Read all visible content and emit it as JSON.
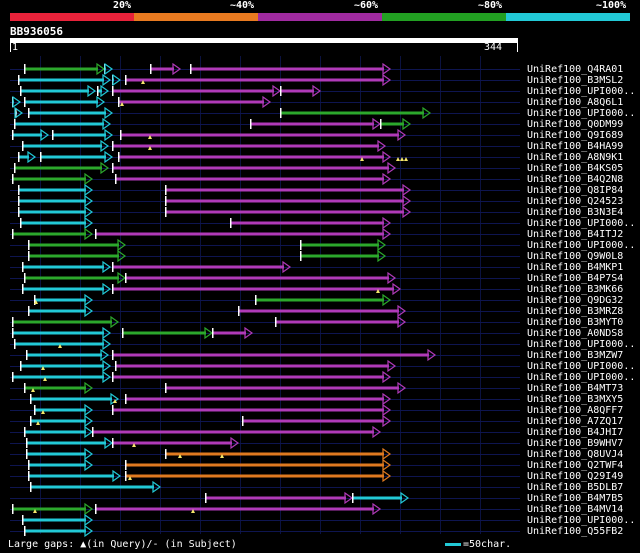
{
  "legend": {
    "labels": [
      "20%",
      "~40%",
      "~60%",
      "~80%",
      "~100%"
    ],
    "colors": [
      "#e8223a",
      "#e87a20",
      "#a02aa0",
      "#22a022",
      "#22c9d6"
    ]
  },
  "query": {
    "title": "BB936056",
    "start": "1",
    "end": "344"
  },
  "palette": {
    "cyan": "#22c9d6",
    "green": "#2ca82c",
    "purple": "#b03ab8",
    "orange": "#e07a20",
    "white": "#ffffff",
    "marker": "#f4e66a"
  },
  "hits": [
    {
      "label": "UniRef100_Q4RA01"
    },
    {
      "label": "UniRef100_B3MSL2"
    },
    {
      "label": "UniRef100_UPI000.."
    },
    {
      "label": "UniRef100_A8Q6L1"
    },
    {
      "label": "UniRef100_UPI000.."
    },
    {
      "label": "UniRef100_Q0DM99"
    },
    {
      "label": "UniRef100_Q9I689"
    },
    {
      "label": "UniRef100_B4HA99"
    },
    {
      "label": "UniRef100_A8N9K1"
    },
    {
      "label": "UniRef100_B4KS05"
    },
    {
      "label": "UniRef100_B4Q2N8"
    },
    {
      "label": "UniRef100_Q8IP84"
    },
    {
      "label": "UniRef100_Q24523"
    },
    {
      "label": "UniRef100_B3N3E4"
    },
    {
      "label": "UniRef100_UPI000.."
    },
    {
      "label": "UniRef100_B4ITJ2"
    },
    {
      "label": "UniRef100_UPI000.."
    },
    {
      "label": "UniRef100_Q9W0L8"
    },
    {
      "label": "UniRef100_B4MKP1"
    },
    {
      "label": "UniRef100_B4P7S4"
    },
    {
      "label": "UniRef100_B3MK66"
    },
    {
      "label": "UniRef100_Q9DG32"
    },
    {
      "label": "UniRef100_B3MRZ8"
    },
    {
      "label": "UniRef100_B3MYT0"
    },
    {
      "label": "UniRef100_A0NDS8"
    },
    {
      "label": "UniRef100_UPI000.."
    },
    {
      "label": "UniRef100_B3MZW7"
    },
    {
      "label": "UniRef100_UPI000.."
    },
    {
      "label": "UniRef100_UPI000.."
    },
    {
      "label": "UniRef100_B4MT73"
    },
    {
      "label": "UniRef100_B3MXY5"
    },
    {
      "label": "UniRef100_A8QFF7"
    },
    {
      "label": "UniRef100_A7ZQ17"
    },
    {
      "label": "UniRef100_B4JHI7"
    },
    {
      "label": "UniRef100_B9WHV7"
    },
    {
      "label": "UniRef100_Q8UVJ4"
    },
    {
      "label": "UniRef100_Q2TWF4"
    },
    {
      "label": "UniRef100_Q29I49"
    },
    {
      "label": "UniRef100_B5DLB7"
    },
    {
      "label": "UniRef100_B4M7B5"
    },
    {
      "label": "UniRef100_B4MV14"
    },
    {
      "label": "UniRef100_UPI000.."
    },
    {
      "label": "UniRef100_Q55FB2"
    }
  ],
  "footer": {
    "text": "Large gaps: ▲(in Query)/- (in Subject)",
    "scale": "=50char."
  }
}
